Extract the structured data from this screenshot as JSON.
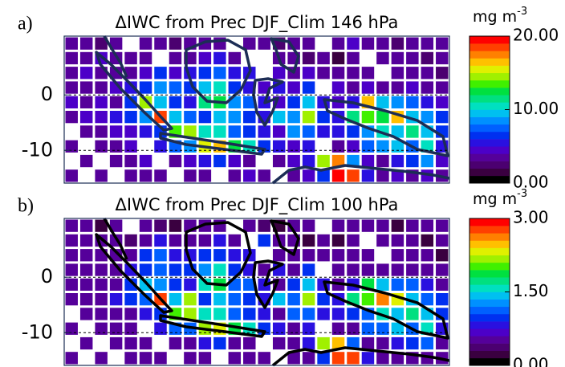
{
  "chart_data": [
    {
      "type": "heatmap",
      "label": "a)",
      "title": "ΔIWC from Prec DJF_Clim 146 hPa",
      "ylim": [
        10.6,
        -15.9
      ],
      "yticks": [
        0,
        -10
      ],
      "grid": true,
      "colorbar": {
        "unit": "mg m",
        "unit_sup": "-3",
        "lim": [
          0,
          20
        ],
        "ticks": [
          {
            "value": 0,
            "label": "0.00"
          },
          {
            "value": 10,
            "label": "10.00"
          },
          {
            "value": 20,
            "label": "20.00"
          }
        ]
      },
      "colors": [
        "#000000",
        "#3a0040",
        "#4b0070",
        "#55009a",
        "#4c00c8",
        "#2a10e0",
        "#0030f0",
        "#0060ff",
        "#0090ff",
        "#00c0f0",
        "#00e0c0",
        "#00e080",
        "#00e040",
        "#40f000",
        "#a0f000",
        "#e0f000",
        "#ffc000",
        "#ff8000",
        "#ff4000",
        "#ff0000"
      ],
      "values": [
        [
          3,
          3,
          2,
          3,
          null,
          3,
          3,
          2,
          3,
          3,
          3,
          null,
          3,
          3,
          2,
          3,
          3,
          null,
          3,
          4,
          3,
          3,
          2,
          3,
          3,
          3
        ],
        [
          3,
          3,
          4,
          3,
          3,
          3,
          null,
          3,
          3,
          4,
          5,
          3,
          null,
          null,
          3,
          3,
          2,
          3,
          1,
          3,
          null,
          3,
          3,
          3,
          2,
          3
        ],
        [
          3,
          4,
          3,
          3,
          3,
          4,
          6,
          4,
          5,
          6,
          7,
          5,
          5,
          null,
          4,
          3,
          4,
          3,
          3,
          3,
          3,
          null,
          3,
          3,
          3,
          2
        ],
        [
          3,
          3,
          3,
          4,
          5,
          6,
          8,
          7,
          6,
          9,
          10,
          6,
          5,
          4,
          5,
          4,
          6,
          null,
          4,
          3,
          4,
          3,
          3,
          4,
          3,
          3
        ],
        [
          4,
          3,
          4,
          3,
          6,
          14,
          9,
          6,
          5,
          11,
          12,
          8,
          7,
          5,
          4,
          6,
          9,
          5,
          4,
          5,
          16,
          9,
          8,
          7,
          5,
          4
        ],
        [
          3,
          4,
          4,
          5,
          6,
          8,
          18,
          9,
          7,
          6,
          9,
          8,
          6,
          5,
          9,
          8,
          14,
          6,
          5,
          11,
          13,
          12,
          16,
          9,
          8,
          6
        ],
        [
          null,
          3,
          3,
          4,
          4,
          5,
          6,
          13,
          14,
          10,
          10,
          7,
          6,
          5,
          4,
          8,
          7,
          5,
          5,
          6,
          8,
          10,
          9,
          11,
          9,
          6
        ],
        [
          3,
          null,
          3,
          3,
          4,
          null,
          5,
          7,
          8,
          15,
          16,
          12,
          10,
          6,
          5,
          4,
          5,
          null,
          3,
          4,
          7,
          8,
          9,
          7,
          10,
          5
        ],
        [
          null,
          3,
          null,
          3,
          3,
          4,
          null,
          3,
          4,
          5,
          6,
          4,
          3,
          null,
          3,
          4,
          5,
          14,
          17,
          8,
          4,
          3,
          5,
          6,
          8,
          4
        ],
        [
          3,
          null,
          3,
          null,
          3,
          3,
          3,
          null,
          3,
          3,
          null,
          3,
          4,
          3,
          null,
          3,
          4,
          6,
          19,
          18,
          5,
          3,
          4,
          3,
          4,
          3
        ]
      ]
    },
    {
      "type": "heatmap",
      "label": "b)",
      "title": "ΔIWC from Prec DJF_Clim 100 hPa",
      "ylim": [
        10.6,
        -15.9
      ],
      "yticks": [
        0,
        -10
      ],
      "grid": true,
      "colorbar": {
        "unit": "mg m",
        "unit_sup": "-3",
        "lim": [
          0,
          3
        ],
        "ticks": [
          {
            "value": 0,
            "label": "0.00"
          },
          {
            "value": 1.5,
            "label": "1.50"
          },
          {
            "value": 3,
            "label": "3.00"
          }
        ]
      },
      "colors": [
        "#000000",
        "#3a0040",
        "#4b0070",
        "#55009a",
        "#4c00c8",
        "#2a10e0",
        "#0030f0",
        "#0060ff",
        "#0090ff",
        "#00c0f0",
        "#00e0c0",
        "#00e080",
        "#00e040",
        "#40f000",
        "#a0f000",
        "#e0f000",
        "#ffc000",
        "#ff8000",
        "#ff4000",
        "#ff0000"
      ],
      "values": [
        [
          0.5,
          0.5,
          0.3,
          0.5,
          null,
          0.5,
          0.4,
          0.3,
          0.5,
          0.5,
          0.5,
          null,
          0.5,
          0.4,
          0.3,
          0.5,
          0.5,
          null,
          0.5,
          0.6,
          0.5,
          0.5,
          0.3,
          0.5,
          0.5,
          0.5
        ],
        [
          0.5,
          0.5,
          0.6,
          0.5,
          0.4,
          0.5,
          0.8,
          0.5,
          0.5,
          0.6,
          0.8,
          0.5,
          null,
          0.9,
          0.5,
          0.5,
          0.3,
          0.5,
          0.2,
          0.5,
          null,
          0.5,
          0.5,
          0.5,
          0.3,
          0.5
        ],
        [
          0.5,
          0.6,
          0.5,
          0.5,
          0.5,
          0.9,
          1.1,
          0.8,
          0.8,
          0.9,
          1.0,
          0.8,
          0.8,
          null,
          0.6,
          0.5,
          0.6,
          0.5,
          0.5,
          0.5,
          0.5,
          null,
          0.5,
          0.5,
          0.5,
          0.3
        ],
        [
          0.5,
          0.5,
          0.5,
          0.6,
          0.8,
          1.0,
          1.2,
          1.0,
          0.9,
          1.3,
          1.5,
          0.9,
          0.8,
          0.6,
          0.8,
          0.6,
          0.9,
          null,
          0.6,
          0.5,
          0.6,
          0.5,
          0.5,
          0.6,
          0.5,
          0.5
        ],
        [
          0.6,
          0.5,
          0.6,
          0.5,
          0.9,
          1.4,
          1.3,
          0.9,
          0.8,
          1.6,
          1.8,
          1.2,
          1.1,
          0.8,
          0.6,
          0.9,
          1.4,
          0.8,
          0.6,
          0.8,
          1.8,
          1.4,
          1.2,
          1.1,
          0.8,
          0.6
        ],
        [
          0.5,
          0.6,
          0.6,
          0.8,
          0.9,
          1.2,
          2.8,
          1.4,
          2.1,
          0.9,
          1.4,
          1.2,
          0.9,
          0.8,
          1.4,
          1.2,
          2.2,
          0.9,
          0.8,
          1.7,
          2.0,
          2.6,
          2.4,
          1.4,
          1.2,
          0.9
        ],
        [
          null,
          0.5,
          0.5,
          0.6,
          0.6,
          0.8,
          0.9,
          2.0,
          2.1,
          1.5,
          1.5,
          1.1,
          0.9,
          0.8,
          0.6,
          1.2,
          1.1,
          0.8,
          0.8,
          0.9,
          1.2,
          1.5,
          1.4,
          1.7,
          1.4,
          0.9
        ],
        [
          0.5,
          null,
          0.5,
          0.5,
          0.6,
          null,
          0.8,
          1.1,
          1.2,
          2.2,
          2.3,
          1.8,
          1.5,
          0.9,
          0.8,
          0.6,
          0.8,
          null,
          0.5,
          0.6,
          1.1,
          1.2,
          1.4,
          1.1,
          1.5,
          0.8
        ],
        [
          null,
          0.5,
          null,
          0.5,
          0.5,
          0.6,
          null,
          0.5,
          0.6,
          0.8,
          0.9,
          0.6,
          0.5,
          null,
          0.5,
          0.6,
          0.8,
          2.1,
          2.5,
          1.2,
          0.6,
          0.5,
          0.8,
          0.9,
          1.2,
          0.6
        ],
        [
          0.5,
          null,
          0.5,
          null,
          0.5,
          0.5,
          0.5,
          null,
          0.5,
          0.5,
          null,
          0.5,
          0.6,
          0.5,
          null,
          0.5,
          0.6,
          0.9,
          2.8,
          2.7,
          0.8,
          0.5,
          0.6,
          0.5,
          0.6,
          0.5
        ]
      ]
    }
  ]
}
